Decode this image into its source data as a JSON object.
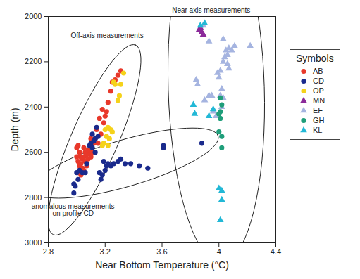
{
  "chart_data": {
    "type": "scatter",
    "x_label": "Near Bottom Temperature (°C)",
    "y_label": "Depth (m)",
    "xlim": [
      2.8,
      4.4
    ],
    "xticks": [
      2.8,
      3.2,
      3.6,
      4,
      4.4
    ],
    "ylim": [
      3000,
      2000
    ],
    "yticks": [
      2000,
      2200,
      2400,
      2600,
      2800,
      3000
    ],
    "legend": "right",
    "legend_title": "Symbols",
    "series": [
      {
        "name": "AB",
        "color": "#e8382a",
        "marker": "circle",
        "x": [
          3.31,
          3.29,
          3.27,
          3.25,
          3.24,
          3.22,
          3.2,
          3.21,
          3.19,
          3.17,
          3.15,
          3.12,
          3.1,
          3.09,
          3.08,
          3.07,
          3.06,
          3.05,
          3.04,
          3.03,
          3.02,
          3.01,
          3.0,
          3.0,
          3.01,
          3.02,
          3.03,
          3.04,
          3.05,
          3.06,
          3.07,
          3.05,
          3.08,
          3.02,
          3.03,
          3.1,
          3.11,
          3.13,
          3.14,
          3.16,
          3.18,
          3.01
        ],
        "y": [
          2240,
          2260,
          2280,
          2290,
          2330,
          2380,
          2440,
          2420,
          2470,
          2520,
          2560,
          2560,
          2540,
          2600,
          2590,
          2610,
          2600,
          2580,
          2630,
          2620,
          2600,
          2570,
          2580,
          2620,
          2640,
          2660,
          2650,
          2670,
          2680,
          2640,
          2660,
          2620,
          2630,
          2680,
          2700,
          2620,
          2600,
          2540,
          2500,
          2450,
          2410,
          2690
        ]
      },
      {
        "name": "CD",
        "color": "#1a2a8c",
        "marker": "circle",
        "x": [
          3.14,
          3.13,
          3.12,
          3.11,
          3.1,
          3.09,
          3.07,
          3.06,
          3.04,
          3.02,
          3.0,
          2.98,
          2.99,
          2.98,
          3.01,
          3.13,
          3.15,
          3.11
        ],
        "y": [
          2490,
          2540,
          2550,
          2520,
          2560,
          2570,
          2650,
          2690,
          2690,
          2680,
          2690,
          2740,
          2750,
          2780,
          2720,
          2600,
          2530,
          2580
        ]
      },
      {
        "name": "OP",
        "color": "#f5d21a",
        "marker": "circle",
        "x": [
          3.33,
          3.31,
          3.3,
          3.29,
          3.26,
          3.27,
          3.2,
          3.22,
          3.24,
          3.25,
          3.21,
          3.23,
          3.19,
          3.18,
          3.22
        ],
        "y": [
          2250,
          2300,
          2350,
          2370,
          2290,
          2300,
          2500,
          2490,
          2500,
          2510,
          2530,
          2540,
          2560,
          2570,
          2570
        ]
      },
      {
        "name": "MN",
        "color": "#8b2a9a",
        "marker": "triangle",
        "x": [
          3.87,
          3.88,
          3.89,
          3.86
        ],
        "y": [
          2050,
          2070,
          2080,
          2060
        ]
      },
      {
        "name": "EF",
        "color": "#a5b4e0",
        "marker": "triangle",
        "x": [
          3.89,
          3.93,
          4.03,
          4.05,
          4.07,
          4.09,
          4.06,
          4.04,
          4.11,
          4.22,
          4.03,
          4.06,
          4.07,
          3.99,
          4.0,
          4.01,
          4.01,
          4.03,
          4.02,
          3.93,
          3.95,
          3.9,
          3.96,
          3.98,
          3.84,
          3.85,
          4.02
        ],
        "y": [
          2040,
          2110,
          2100,
          2150,
          2140,
          2150,
          2170,
          2180,
          2130,
          2130,
          2200,
          2210,
          2230,
          2250,
          2270,
          2240,
          2350,
          2360,
          2400,
          2350,
          2350,
          2370,
          2420,
          2440,
          2280,
          2300,
          2320
        ]
      },
      {
        "name": "GH",
        "color": "#1f9e7a",
        "marker": "circle",
        "x": [
          4.01,
          4.02,
          4.01,
          4.0,
          4.01,
          4.0,
          4.02,
          4.02
        ],
        "y": [
          2360,
          2390,
          2420,
          2430,
          2450,
          2510,
          2530,
          2580
        ]
      },
      {
        "name": "KL",
        "color": "#22b8d6",
        "marker": "triangle",
        "x": [
          3.87,
          3.9,
          3.82,
          3.83,
          3.93,
          3.96,
          4.0,
          4.02,
          4.02,
          4.01
        ],
        "y": [
          2040,
          2030,
          2390,
          2430,
          2440,
          2410,
          2760,
          2770,
          2810,
          2900
        ]
      }
    ],
    "annotations": [
      {
        "text": "Off-axis measurements",
        "series": [
          "AB",
          "CD",
          "OP"
        ]
      },
      {
        "text": "Near axis measurements",
        "series": [
          "MN",
          "EF",
          "GH",
          "KL"
        ]
      },
      {
        "text": "anomalous measurements\non profile CD",
        "series": "CD",
        "x": [
          3.19,
          3.21,
          3.22,
          3.24,
          3.26,
          3.29,
          3.31,
          3.34,
          3.38,
          3.44,
          3.5,
          3.61,
          3.61,
          3.88,
          3.16,
          3.18,
          3.17,
          3.2
        ],
        "y": [
          2640,
          2660,
          2650,
          2660,
          2650,
          2640,
          2630,
          2650,
          2650,
          2660,
          2670,
          2570,
          2580,
          2560,
          2690,
          2700,
          2720,
          2680
        ]
      }
    ]
  }
}
